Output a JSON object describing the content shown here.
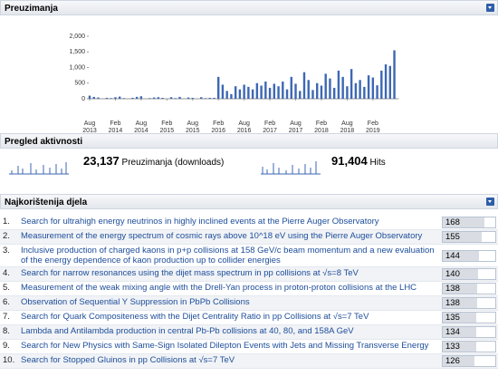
{
  "sections": {
    "downloads": {
      "title": "Preuzimanja"
    },
    "activity": {
      "title": "Pregled aktivnosti",
      "downloads_total": "23,137",
      "downloads_label": "Preuzimanja (downloads)",
      "hits_total": "91,404",
      "hits_label": "Hits"
    },
    "top_works": {
      "title": "Najkorištenija djela",
      "rows": [
        {
          "rank": "1.",
          "title": "Search for ultrahigh energy neutrinos in highly inclined events at the Pierre Auger Observatory",
          "downloads": 168
        },
        {
          "rank": "2.",
          "title": "Measurement of the energy spectrum of cosmic rays above 10^18 eV using the Pierre Auger Observatory",
          "downloads": 155
        },
        {
          "rank": "3.",
          "title": "Inclusive production of charged kaons in p+p collisions at 158 GeV/c beam momentum and a new evaluation of the energy dependence of kaon production up to collider energies",
          "downloads": 144
        },
        {
          "rank": "4.",
          "title": "Search for narrow resonances using the dijet mass spectrum in pp collisions at √s=8 TeV",
          "downloads": 140
        },
        {
          "rank": "5.",
          "title": "Measurement of the weak mixing angle with the Drell-Yan process in proton-proton collisions at the LHC",
          "downloads": 138
        },
        {
          "rank": "6.",
          "title": "Observation of Sequential Y Suppression in PbPb Collisions",
          "downloads": 138
        },
        {
          "rank": "7.",
          "title": "Search for Quark Compositeness with the Dijet Centrality Ratio in pp Collisions at √s=7 TeV",
          "downloads": 135
        },
        {
          "rank": "8.",
          "title": "Lambda and Antilambda production in central Pb-Pb collisions at 40, 80, and 158A GeV",
          "downloads": 134
        },
        {
          "rank": "9.",
          "title": "Search for New Physics with Same-Sign Isolated Dilepton Events with Jets and Missing Transverse Energy",
          "downloads": 133
        },
        {
          "rank": "10.",
          "title": "Search for Stopped Gluinos in pp Collisions at √s=7 TeV",
          "downloads": 126
        }
      ]
    }
  },
  "chart_data": {
    "type": "bar",
    "color": "#3d67b3",
    "categories": [
      "Aug 2013",
      null,
      null,
      null,
      null,
      null,
      "Feb 2014",
      null,
      null,
      null,
      null,
      null,
      "Aug 2014",
      null,
      null,
      null,
      null,
      null,
      "Feb 2015",
      null,
      null,
      null,
      null,
      null,
      "Aug 2015",
      null,
      null,
      null,
      null,
      null,
      "Feb 2016",
      null,
      null,
      null,
      null,
      null,
      "Aug 2016",
      null,
      null,
      null,
      null,
      null,
      "Feb 2017",
      null,
      null,
      null,
      null,
      null,
      "Aug 2017",
      null,
      null,
      null,
      null,
      null,
      "Feb 2018",
      null,
      null,
      null,
      null,
      null,
      "Aug 2018",
      null,
      null,
      null,
      null,
      null,
      "Feb 2019",
      null,
      null,
      null,
      null,
      null
    ],
    "values": [
      100,
      60,
      40,
      0,
      30,
      20,
      50,
      70,
      20,
      0,
      30,
      60,
      80,
      0,
      20,
      40,
      50,
      30,
      0,
      50,
      20,
      60,
      0,
      40,
      30,
      0,
      50,
      20,
      30,
      30,
      700,
      450,
      250,
      150,
      400,
      300,
      450,
      380,
      300,
      500,
      420,
      550,
      350,
      480,
      400,
      550,
      300,
      700,
      480,
      250,
      850,
      600,
      280,
      500,
      420,
      800,
      650,
      350,
      900,
      700,
      400,
      950,
      500,
      600,
      380,
      750,
      680,
      430,
      900,
      1100,
      1050,
      1550
    ],
    "ylim": [
      0,
      2000
    ],
    "yticks": [
      0,
      500,
      {
        "value": 1000,
        "label": "1,000"
      },
      {
        "value": 1500,
        "label": "1,500"
      },
      {
        "value": 2000,
        "label": "2,000"
      }
    ]
  }
}
